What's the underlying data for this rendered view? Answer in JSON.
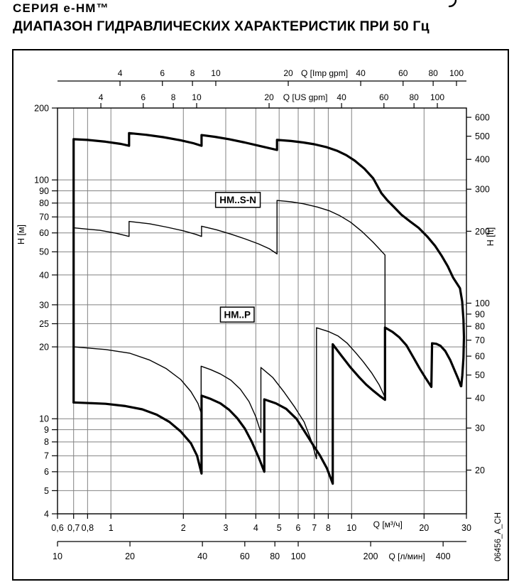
{
  "title": {
    "line1": "СЕРИЯ  e-HM™",
    "line2": "ДИАПАЗОН ГИДРАВЛИЧЕСКИХ ХАРАКТЕРИСТИК ПРИ 50 Гц"
  },
  "figure_code": "06456_A_CH",
  "chart_data": {
    "type": "line",
    "x_scale": "log",
    "y_scale": "log",
    "x_range_m3h": [
      0.6,
      30
    ],
    "y_range_m": [
      4,
      200
    ],
    "axes": {
      "top_imp": {
        "label": "Q [Imp gpm]",
        "unit_to_m3h": 0.27276,
        "ticks": [
          4,
          6,
          8,
          10,
          20,
          40,
          60,
          80,
          100
        ],
        "unit_label_between": [
          20,
          40
        ]
      },
      "top_us": {
        "label": "Q [US gpm]",
        "unit_to_m3h": 0.2271,
        "ticks": [
          4,
          6,
          8,
          10,
          20,
          40,
          60,
          80,
          100
        ],
        "unit_label_between": [
          20,
          40
        ]
      },
      "left": {
        "label": "H [м]",
        "ticks": [
          200,
          100,
          90,
          80,
          70,
          60,
          50,
          40,
          30,
          25,
          20,
          10,
          9,
          8,
          7,
          6,
          5,
          4
        ]
      },
      "right": {
        "label": "H [ft]",
        "unit_to_m": 0.3048,
        "ticks": [
          600,
          500,
          400,
          300,
          200,
          100,
          90,
          80,
          70,
          60,
          50,
          40,
          30,
          20
        ]
      },
      "bottom_m3h": {
        "label": "Q [м³/ч]",
        "ticks": [
          0.6,
          0.7,
          0.8,
          1,
          2,
          3,
          4,
          5,
          6,
          7,
          8,
          10,
          20,
          30
        ],
        "tick_labels": [
          "0,6",
          "0,7",
          "0,8",
          "1",
          "2",
          "3",
          "4",
          "5",
          "6",
          "7",
          "8",
          "10",
          "20",
          "30"
        ],
        "unit_label_between": [
          10,
          20
        ]
      },
      "bottom_lmin": {
        "label": "Q [л/мин]",
        "unit_to_m3h": 0.06,
        "ticks": [
          10,
          20,
          40,
          60,
          80,
          100,
          200,
          400
        ],
        "unit_label_between": [
          200,
          400
        ]
      }
    },
    "gridlines": {
      "x_m3h": [
        0.7,
        0.8,
        1,
        2,
        3,
        4,
        5,
        6,
        7,
        8,
        10,
        20
      ],
      "y_m": [
        5,
        6,
        7,
        8,
        9,
        10,
        20,
        25,
        30,
        40,
        50,
        60,
        70,
        80,
        90,
        100
      ]
    },
    "series": [
      {
        "name": "envelope-thick-top",
        "width": 3.2,
        "points": [
          [
            0.7,
            11.7
          ],
          [
            0.7,
            148
          ],
          [
            0.8,
            147
          ],
          [
            0.95,
            144.5
          ],
          [
            1.1,
            141.5
          ],
          [
            1.19,
            139
          ],
          [
            1.19,
            157
          ],
          [
            1.4,
            154.5
          ],
          [
            1.65,
            151
          ],
          [
            1.95,
            146.5
          ],
          [
            2.2,
            142.5
          ],
          [
            2.38,
            139
          ],
          [
            2.38,
            154
          ],
          [
            2.7,
            151.5
          ],
          [
            3.1,
            148
          ],
          [
            3.6,
            143.5
          ],
          [
            4.25,
            138
          ],
          [
            4.9,
            133.5
          ],
          [
            4.9,
            147
          ],
          [
            5.6,
            145.5
          ],
          [
            6.3,
            143.5
          ],
          [
            7.0,
            141
          ],
          [
            7.9,
            137
          ],
          [
            8.7,
            132.5
          ],
          [
            9.5,
            127
          ],
          [
            10.3,
            120.5
          ],
          [
            11.3,
            111.5
          ],
          [
            12.3,
            101.5
          ],
          [
            13.3,
            88
          ],
          [
            14.1,
            82
          ],
          [
            15.0,
            77
          ],
          [
            16.1,
            71.5
          ],
          [
            17.5,
            67
          ],
          [
            19.0,
            63
          ],
          [
            20.6,
            58
          ],
          [
            22.2,
            53
          ],
          [
            23.7,
            48
          ],
          [
            25.1,
            43.5
          ],
          [
            26.4,
            39
          ],
          [
            27.5,
            36.6
          ],
          [
            28.2,
            35.2
          ],
          [
            28.8,
            31
          ],
          [
            29.15,
            26
          ],
          [
            29.3,
            22
          ],
          [
            29.15,
            18
          ],
          [
            28.85,
            15.2
          ],
          [
            28.55,
            13.7
          ]
        ]
      },
      {
        "name": "envelope-thick-bottom",
        "width": 3.2,
        "points": [
          [
            0.7,
            11.7
          ],
          [
            0.95,
            11.55
          ],
          [
            1.15,
            11.3
          ],
          [
            1.35,
            10.95
          ],
          [
            1.55,
            10.4
          ],
          [
            1.75,
            9.7
          ],
          [
            1.95,
            8.85
          ],
          [
            2.15,
            7.9
          ],
          [
            2.28,
            7.0
          ],
          [
            2.38,
            5.9
          ],
          [
            2.38,
            12.5
          ],
          [
            2.6,
            12.1
          ],
          [
            2.85,
            11.6
          ],
          [
            3.1,
            10.9
          ],
          [
            3.35,
            10.05
          ],
          [
            3.6,
            9.1
          ],
          [
            3.85,
            8.0
          ],
          [
            4.12,
            6.85
          ],
          [
            4.34,
            6.0
          ],
          [
            4.34,
            12.05
          ],
          [
            4.85,
            11.6
          ],
          [
            5.35,
            11.0
          ],
          [
            5.9,
            10.0
          ],
          [
            6.4,
            8.8
          ],
          [
            6.9,
            7.8
          ],
          [
            7.4,
            7.0
          ],
          [
            7.9,
            6.2
          ],
          [
            8.35,
            5.35
          ],
          [
            8.35,
            20.5
          ],
          [
            9.1,
            18.3
          ],
          [
            9.9,
            16.4
          ],
          [
            10.7,
            15.0
          ],
          [
            11.5,
            13.9
          ],
          [
            12.3,
            13.1
          ],
          [
            13.1,
            12.45
          ],
          [
            13.77,
            12.0
          ],
          [
            13.77,
            24.1
          ],
          [
            14.8,
            23.1
          ],
          [
            15.8,
            21.9
          ],
          [
            16.9,
            20.3
          ],
          [
            18.1,
            18.0
          ],
          [
            19.2,
            16.2
          ],
          [
            20.3,
            14.8
          ],
          [
            21.45,
            13.6
          ],
          [
            21.6,
            20.7
          ],
          [
            22.5,
            20.6
          ],
          [
            23.4,
            20.2
          ],
          [
            24.5,
            19.2
          ],
          [
            25.7,
            17.6
          ],
          [
            26.9,
            15.8
          ],
          [
            27.8,
            14.6
          ],
          [
            28.45,
            13.7
          ]
        ]
      },
      {
        "name": "envelope-thin-upper",
        "width": 1.4,
        "points": [
          [
            0.7,
            63
          ],
          [
            0.9,
            61.5
          ],
          [
            1.05,
            59.8
          ],
          [
            1.19,
            58
          ],
          [
            1.19,
            67
          ],
          [
            1.45,
            65.5
          ],
          [
            1.7,
            63.5
          ],
          [
            2.0,
            61.2
          ],
          [
            2.25,
            59.2
          ],
          [
            2.38,
            58
          ],
          [
            2.38,
            64
          ],
          [
            2.75,
            61.8
          ],
          [
            3.15,
            59.3
          ],
          [
            3.6,
            56.7
          ],
          [
            4.1,
            54
          ],
          [
            4.55,
            51.5
          ],
          [
            4.9,
            49
          ],
          [
            4.9,
            82
          ],
          [
            5.6,
            81
          ],
          [
            6.3,
            79.5
          ],
          [
            7.2,
            77
          ],
          [
            8.1,
            74.2
          ],
          [
            8.9,
            71
          ],
          [
            9.9,
            66.5
          ],
          [
            11.0,
            61
          ],
          [
            12.3,
            54.8
          ],
          [
            13.77,
            48.5
          ],
          [
            13.77,
            12.2
          ]
        ]
      },
      {
        "name": "envelope-thin-lower",
        "width": 1.4,
        "points": [
          [
            0.7,
            20
          ],
          [
            0.95,
            19.5
          ],
          [
            1.2,
            18.8
          ],
          [
            1.45,
            17.6
          ],
          [
            1.7,
            16.2
          ],
          [
            1.95,
            14.6
          ],
          [
            2.15,
            13.0
          ],
          [
            2.3,
            11.6
          ],
          [
            2.37,
            10.6
          ],
          [
            2.37,
            16.6
          ],
          [
            2.6,
            16.05
          ],
          [
            2.85,
            15.4
          ],
          [
            3.15,
            14.5
          ],
          [
            3.45,
            13.3
          ],
          [
            3.75,
            11.8
          ],
          [
            4.0,
            10.2
          ],
          [
            4.2,
            8.75
          ],
          [
            4.2,
            16.4
          ],
          [
            4.7,
            14.9
          ],
          [
            5.25,
            12.9
          ],
          [
            5.8,
            11.2
          ],
          [
            6.35,
            9.7
          ],
          [
            6.8,
            8.1
          ],
          [
            7.15,
            6.8
          ],
          [
            7.15,
            24.05
          ],
          [
            8.0,
            23.2
          ],
          [
            8.8,
            22.2
          ],
          [
            9.6,
            20.7
          ],
          [
            10.4,
            18.9
          ],
          [
            11.2,
            17.3
          ],
          [
            12.1,
            15.6
          ],
          [
            13.0,
            13.9
          ],
          [
            13.77,
            12.3
          ]
        ]
      }
    ],
    "curve_labels": [
      {
        "text": "HM..S-N",
        "q": 3.37,
        "h": 82.5
      },
      {
        "text": "HM..P",
        "q": 3.35,
        "h": 27.3
      }
    ]
  }
}
